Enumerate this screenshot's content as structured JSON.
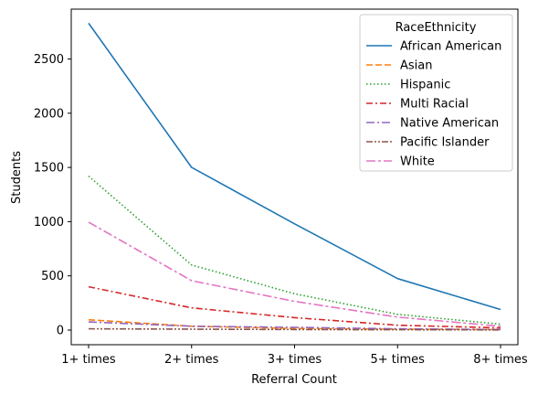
{
  "chart_data": {
    "type": "line",
    "categories": [
      "1+ times",
      "2+ times",
      "3+ times",
      "5+ times",
      "8+ times"
    ],
    "xlabel": "Referral Count",
    "ylabel": "Students",
    "ylim": [
      -135,
      2960
    ],
    "yticks": [
      0,
      500,
      1000,
      1500,
      2000,
      2500
    ],
    "grid": false,
    "legend": {
      "title": "RaceEthnicity",
      "placement": "top-right"
    },
    "series": [
      {
        "name": "African American",
        "color": "#1f77b4",
        "dash": "solid",
        "values": [
          2830,
          1500,
          980,
          475,
          190
        ]
      },
      {
        "name": "Asian",
        "color": "#ff7f0e",
        "dash": "dashed",
        "values": [
          95,
          35,
          15,
          8,
          5
        ]
      },
      {
        "name": "Hispanic",
        "color": "#2ca02c",
        "dash": "dotted",
        "values": [
          1420,
          600,
          335,
          145,
          55
        ]
      },
      {
        "name": "Multi Racial",
        "color": "#d62728",
        "dash": "dashdot",
        "values": [
          400,
          205,
          115,
          45,
          20
        ]
      },
      {
        "name": "Native American",
        "color": "#9467bd",
        "dash": "dashdot2",
        "values": [
          75,
          35,
          25,
          12,
          5
        ]
      },
      {
        "name": "Pacific Islander",
        "color": "#8c564b",
        "dash": "dashdotdot",
        "values": [
          12,
          8,
          5,
          3,
          2
        ]
      },
      {
        "name": "White",
        "color": "#e377c2",
        "dash": "longdashdot",
        "values": [
          995,
          455,
          265,
          120,
          35
        ]
      }
    ]
  }
}
